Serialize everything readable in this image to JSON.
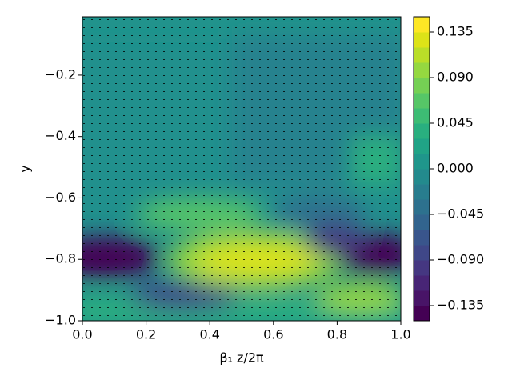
{
  "chart_data": {
    "type": "contour",
    "xlabel": "β₁ z/2π",
    "ylabel": "y",
    "xlim": [
      0,
      1
    ],
    "ylim": [
      -1.0,
      -0.01
    ],
    "xticks": [
      {
        "value": 0,
        "label": "0.0"
      },
      0.2,
      0.4,
      0.6,
      0.8,
      {
        "value": 1,
        "label": "1.0"
      }
    ],
    "yticks": [
      {
        "value": -1.0,
        "label": "−1.0"
      },
      {
        "value": -0.8,
        "label": "−0.8"
      },
      {
        "value": -0.6,
        "label": "−0.6"
      },
      {
        "value": -0.4,
        "label": "−0.4"
      },
      {
        "value": -0.2,
        "label": "−0.2"
      }
    ],
    "colorbar": {
      "lim": [
        -0.15,
        0.15
      ],
      "ticks": [
        {
          "value": -0.135,
          "label": "−0.135"
        },
        {
          "value": -0.09,
          "label": "−0.090"
        },
        {
          "value": -0.045,
          "label": "−0.045"
        },
        {
          "value": 0,
          "label": "0.000"
        },
        0.045,
        {
          "value": 0.09,
          "label": "0.090"
        },
        0.135
      ],
      "colors": [
        "#440154",
        "#481467",
        "#482576",
        "#453781",
        "#3f4788",
        "#39558c",
        "#32648e",
        "#2d718e",
        "#287d8e",
        "#238a8d",
        "#1f968b",
        "#20a386",
        "#29af7f",
        "#3dbc74",
        "#56c667",
        "#75d054",
        "#95d840",
        "#bade28",
        "#dde318",
        "#fde725"
      ]
    }
  }
}
